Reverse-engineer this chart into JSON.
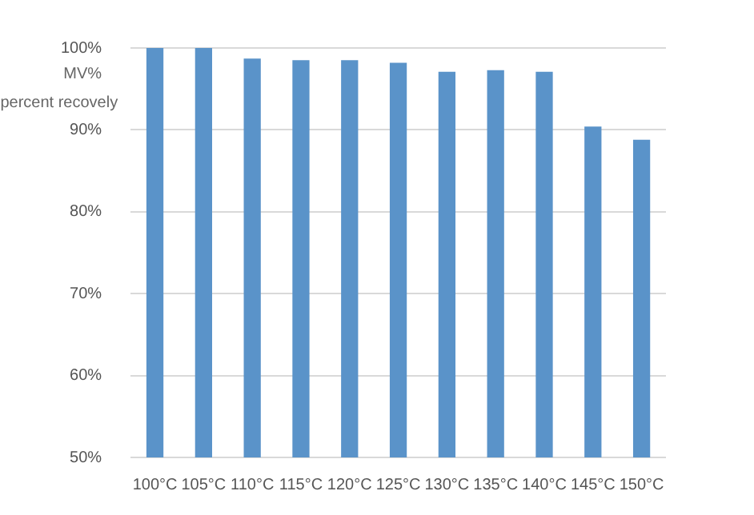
{
  "chart_data": {
    "type": "bar",
    "ylabel": "MV%\npercent recovely",
    "categories": [
      "100°C",
      "105°C",
      "110°C",
      "115°C",
      "120°C",
      "125°C",
      "130°C",
      "135°C",
      "140°C",
      "145°C",
      "150°C"
    ],
    "values": [
      100,
      100,
      98.7,
      98.5,
      98.5,
      98.2,
      97.1,
      97.3,
      97.1,
      90.4,
      88.8
    ],
    "color": "#5a93c9",
    "ylim": [
      50,
      100
    ],
    "yticks": [
      {
        "value": 50,
        "label": "50%"
      },
      {
        "value": 60,
        "label": "60%"
      },
      {
        "value": 70,
        "label": "70%"
      },
      {
        "value": 80,
        "label": "80%"
      },
      {
        "value": 90,
        "label": "90%"
      },
      {
        "value": 100,
        "label": "100%"
      }
    ],
    "grid": "y",
    "legend": false
  }
}
